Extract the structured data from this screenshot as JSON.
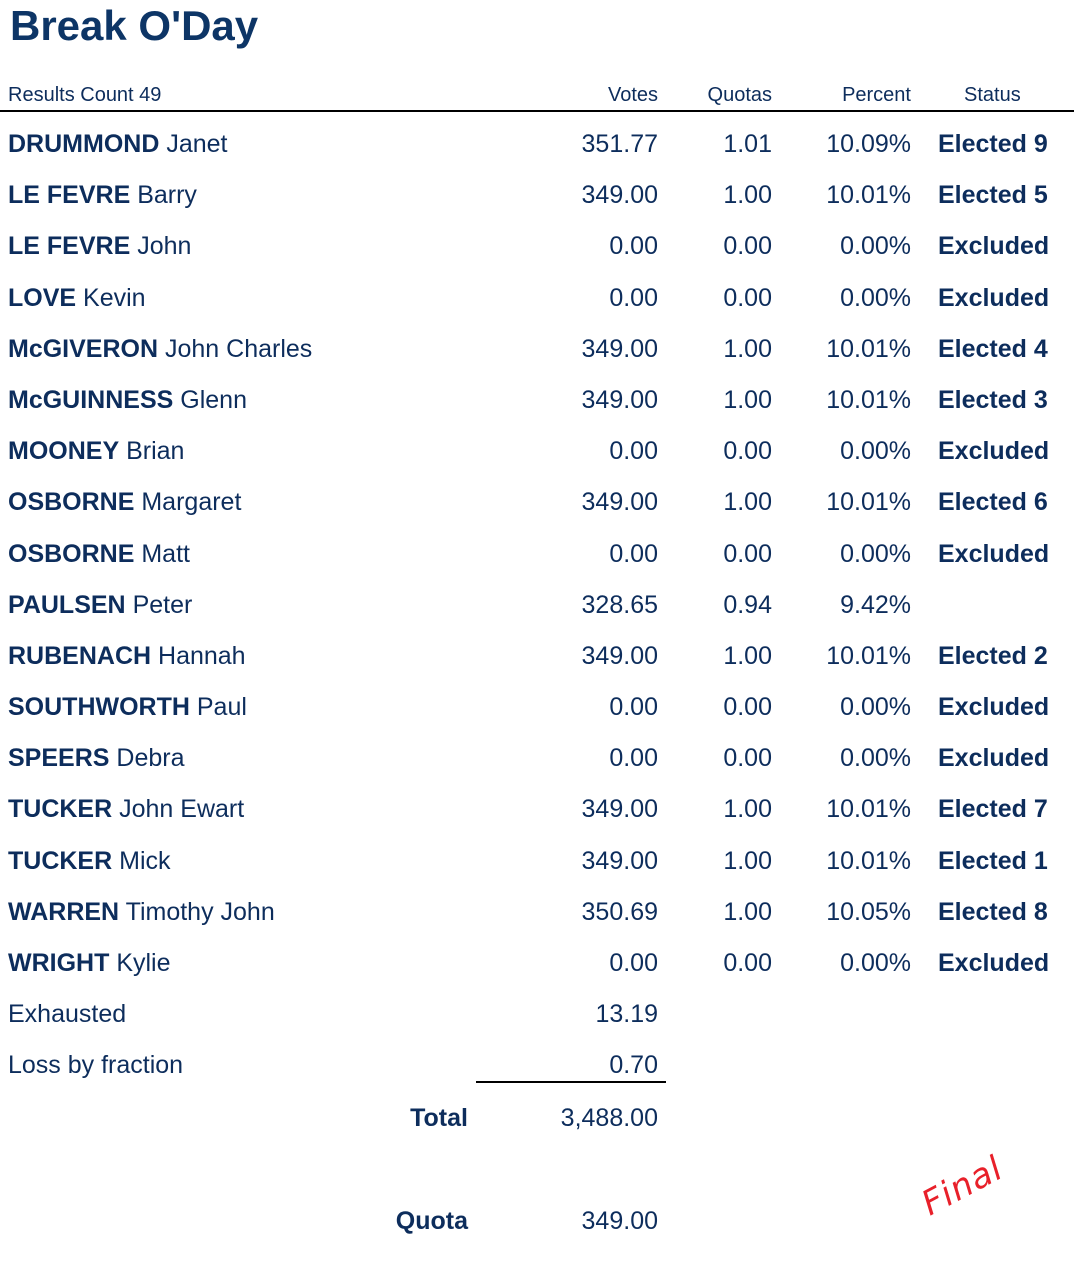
{
  "title": "Break O'Day",
  "header": {
    "results_count": "Results Count 49",
    "votes": "Votes",
    "quotas": "Quotas",
    "percent": "Percent",
    "status": "Status"
  },
  "candidates": [
    {
      "surname": "DRUMMOND",
      "given": "Janet",
      "votes": "351.77",
      "quotas": "1.01",
      "percent": "10.09%",
      "status": "Elected 9"
    },
    {
      "surname": "LE FEVRE",
      "given": "Barry",
      "votes": "349.00",
      "quotas": "1.00",
      "percent": "10.01%",
      "status": "Elected 5"
    },
    {
      "surname": "LE FEVRE",
      "given": "John",
      "votes": "0.00",
      "quotas": "0.00",
      "percent": "0.00%",
      "status": "Excluded"
    },
    {
      "surname": "LOVE",
      "given": "Kevin",
      "votes": "0.00",
      "quotas": "0.00",
      "percent": "0.00%",
      "status": "Excluded"
    },
    {
      "surname": "McGIVERON",
      "given": "John Charles",
      "votes": "349.00",
      "quotas": "1.00",
      "percent": "10.01%",
      "status": "Elected 4"
    },
    {
      "surname": "McGUINNESS",
      "given": "Glenn",
      "votes": "349.00",
      "quotas": "1.00",
      "percent": "10.01%",
      "status": "Elected 3"
    },
    {
      "surname": "MOONEY",
      "given": "Brian",
      "votes": "0.00",
      "quotas": "0.00",
      "percent": "0.00%",
      "status": "Excluded"
    },
    {
      "surname": "OSBORNE",
      "given": "Margaret",
      "votes": "349.00",
      "quotas": "1.00",
      "percent": "10.01%",
      "status": "Elected 6"
    },
    {
      "surname": "OSBORNE",
      "given": "Matt",
      "votes": "0.00",
      "quotas": "0.00",
      "percent": "0.00%",
      "status": "Excluded"
    },
    {
      "surname": "PAULSEN",
      "given": "Peter",
      "votes": "328.65",
      "quotas": "0.94",
      "percent": "9.42%",
      "status": ""
    },
    {
      "surname": "RUBENACH",
      "given": "Hannah",
      "votes": "349.00",
      "quotas": "1.00",
      "percent": "10.01%",
      "status": "Elected 2"
    },
    {
      "surname": "SOUTHWORTH",
      "given": "Paul",
      "votes": "0.00",
      "quotas": "0.00",
      "percent": "0.00%",
      "status": "Excluded"
    },
    {
      "surname": "SPEERS",
      "given": "Debra",
      "votes": "0.00",
      "quotas": "0.00",
      "percent": "0.00%",
      "status": "Excluded"
    },
    {
      "surname": "TUCKER",
      "given": "John Ewart",
      "votes": "349.00",
      "quotas": "1.00",
      "percent": "10.01%",
      "status": "Elected 7"
    },
    {
      "surname": "TUCKER",
      "given": "Mick",
      "votes": "349.00",
      "quotas": "1.00",
      "percent": "10.01%",
      "status": "Elected 1"
    },
    {
      "surname": "WARREN",
      "given": "Timothy John",
      "votes": "350.69",
      "quotas": "1.00",
      "percent": "10.05%",
      "status": "Elected 8"
    },
    {
      "surname": "WRIGHT",
      "given": "Kylie",
      "votes": "0.00",
      "quotas": "0.00",
      "percent": "0.00%",
      "status": "Excluded"
    }
  ],
  "exhausted": {
    "label": "Exhausted",
    "votes": "13.19"
  },
  "loss_by_fraction": {
    "label": "Loss by fraction",
    "votes": "0.70"
  },
  "total": {
    "label": "Total",
    "value": "3,488.00"
  },
  "quota": {
    "label": "Quota",
    "value": "349.00"
  },
  "stamp": "Final",
  "colors": {
    "text": "#0d2d5c",
    "title": "#0d3566",
    "stamp": "#e8202a"
  }
}
